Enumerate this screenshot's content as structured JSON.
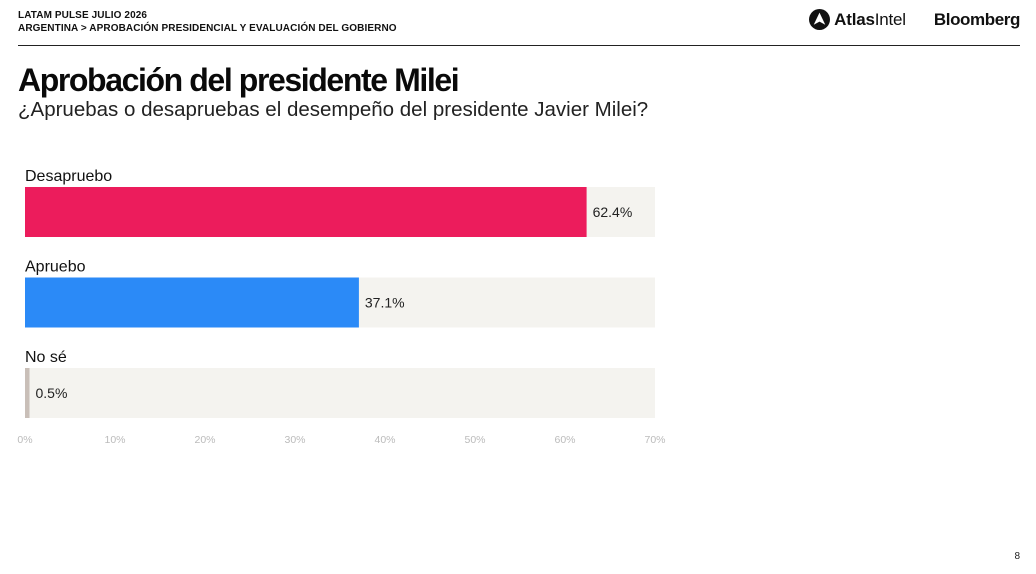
{
  "header": {
    "line1": "LATAM PULSE JULIO 2026",
    "line2": "ARGENTINA > APROBACIÓN PRESIDENCIAL Y EVALUACIÓN DEL GOBIERNO",
    "logo_atlas_bold": "Atlas",
    "logo_atlas_rest": "Intel",
    "logo_bloomberg": "Bloomberg"
  },
  "page_number": "8",
  "chart_data": {
    "type": "bar",
    "orientation": "horizontal",
    "title": "Aprobación del presidente Milei",
    "subtitle": "¿Apruebas o desapruebas el desempeño del presidente Javier Milei?",
    "categories": [
      "Desapruebo",
      "Apruebo",
      "No sé"
    ],
    "values": [
      62.4,
      37.1,
      0.5
    ],
    "value_labels": [
      "62.4%",
      "37.1%",
      "0.5%"
    ],
    "colors": [
      "#ec1c5c",
      "#2b8af7",
      "#c9bfb8"
    ],
    "track_color": "#f4f3ef",
    "xlim": [
      0,
      70
    ],
    "xticks": [
      0,
      10,
      20,
      30,
      40,
      50,
      60,
      70
    ],
    "xtick_labels": [
      "0%",
      "10%",
      "20%",
      "30%",
      "40%",
      "50%",
      "60%",
      "70%"
    ],
    "grid": false,
    "legend": "none"
  }
}
